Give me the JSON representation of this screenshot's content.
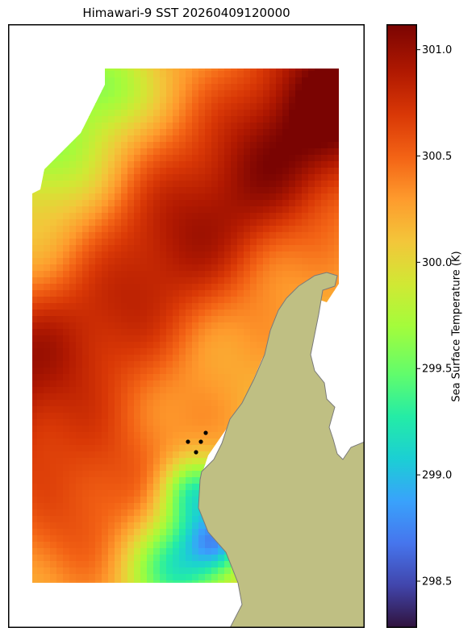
{
  "chart_data": {
    "type": "heatmap",
    "title": "Himawari-9 SST 20260409120000",
    "colorbar": {
      "label": "Sea Surface Temperature (K)",
      "range": [
        298.28,
        301.12
      ],
      "ticks": [
        "298.5",
        "299.0",
        "299.5",
        "300.0",
        "300.5",
        "301.0"
      ],
      "colormap": "turbo"
    },
    "field_description_values": {
      "min_visible": 298.4,
      "max_visible": 301.0,
      "warm_core": 300.9,
      "cool_southeast_patch": 299.3
    },
    "land_color": "#bfbf83",
    "markers": [
      {
        "label": "point",
        "color": "#000000"
      },
      {
        "label": "point",
        "color": "#000000"
      },
      {
        "label": "point",
        "color": "#000000"
      },
      {
        "label": "point",
        "color": "#000000"
      }
    ]
  }
}
